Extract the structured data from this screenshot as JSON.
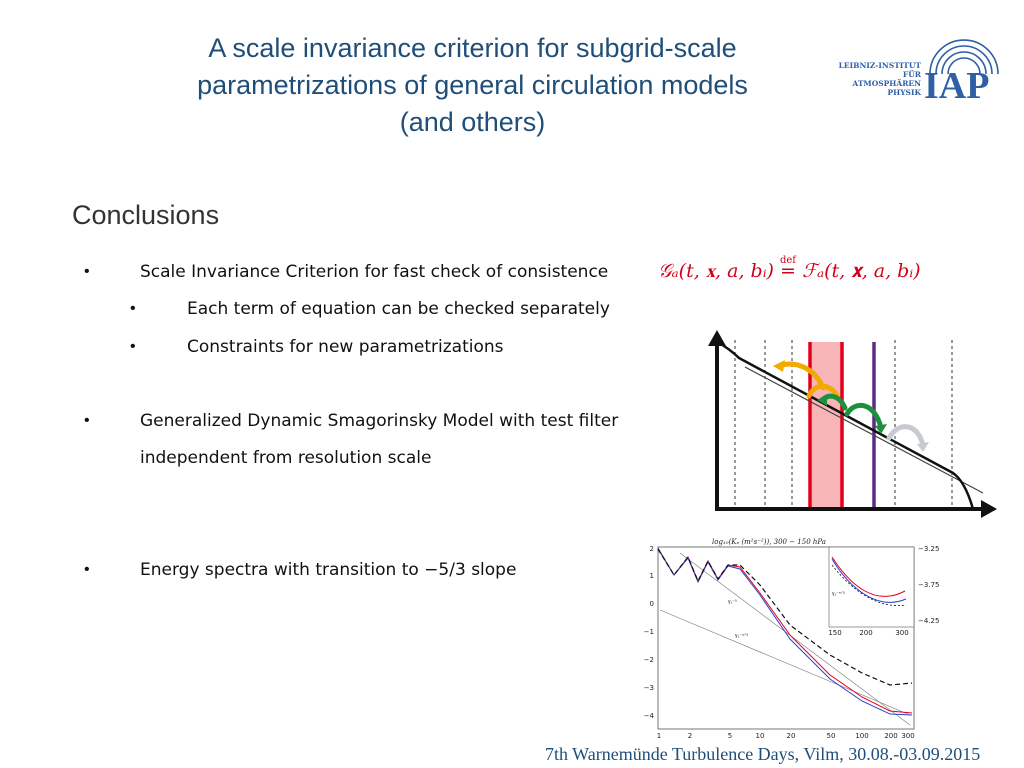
{
  "title": {
    "line1": "A scale invariance criterion for subgrid-scale",
    "line2": "parametrizations of general circulation models",
    "line3": "(and others)"
  },
  "logo": {
    "text_lines": [
      "LEIBNIZ-INSTITUT",
      "FÜR",
      "ATMOSPHÄREN",
      "PHYSIK"
    ],
    "acronym": "IAP",
    "color": "#2e5fa7"
  },
  "section_heading": "Conclusions",
  "bullets": {
    "b1": "Scale Invariance Criterion for fast check of consistence",
    "b1_sub1": "Each term of equation can be checked separately",
    "b1_sub2": "Constraints for new parametrizations",
    "b2_line1": "Generalized Dynamic Smagorinsky Model with test filter",
    "b2_line2": "independent from resolution scale",
    "b3": "Energy spectra with transition to −5/3 slope",
    "bullet_char": "•"
  },
  "formula": {
    "lhs": "𝒢ₐ(t, 𝐱, a, bᵢ)",
    "def": "def",
    "eq": "=",
    "rhs": "ℱₐ(t, 𝐱, a, bᵢ)",
    "color": "#d0021b"
  },
  "spectrum_plot": {
    "title": "log₁₀(Kₑ (m²s⁻²)), 300 − 150 hPa",
    "y_ticks": [
      "2",
      "1",
      "0",
      "−1",
      "−2",
      "−3",
      "−4"
    ],
    "x_ticks": [
      "1",
      "2",
      "5",
      "10",
      "20",
      "50",
      "100",
      "200",
      "300"
    ],
    "inset_y_ticks": [
      "−3.25",
      "−3.75",
      "−4.25"
    ],
    "inset_x_ticks": [
      "150",
      "200",
      "300"
    ],
    "label_k3": "γ₁⁻³",
    "label_k53": "γ₂⁻⁵ᐟ³",
    "label_inset": "γ₁⁻⁵ᐟ³"
  },
  "footer": "7th Warnemünde Turbulence Days, Vilm, 30.08.-03.09.2015"
}
